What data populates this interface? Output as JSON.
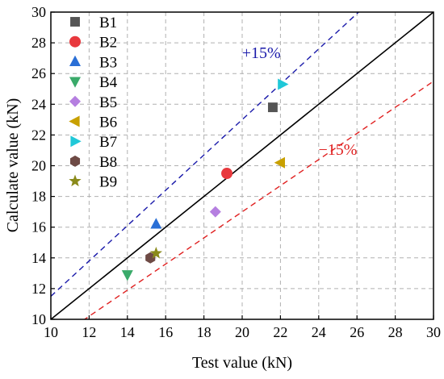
{
  "chart_data": {
    "type": "scatter",
    "xlabel": "Test value (kN)",
    "ylabel": "Calculate value (kN)",
    "xlim": [
      10,
      30
    ],
    "ylim": [
      10,
      30
    ],
    "xticks": [
      10,
      12,
      14,
      16,
      18,
      20,
      22,
      24,
      26,
      28,
      30
    ],
    "yticks": [
      10,
      12,
      14,
      16,
      18,
      20,
      22,
      24,
      26,
      28,
      30
    ],
    "grid": true,
    "legend_position": "top-left",
    "series": [
      {
        "name": "B1",
        "marker": "square",
        "color": "#555555",
        "x": 21.6,
        "y": 23.8
      },
      {
        "name": "B2",
        "marker": "circle",
        "color": "#e8383d",
        "x": 19.2,
        "y": 19.5
      },
      {
        "name": "B3",
        "marker": "triangle-up",
        "color": "#2a6fd6",
        "x": 15.5,
        "y": 16.2
      },
      {
        "name": "B4",
        "marker": "triangle-down",
        "color": "#3aaa6a",
        "x": 14.0,
        "y": 12.9
      },
      {
        "name": "B5",
        "marker": "diamond",
        "color": "#b57fe0",
        "x": 18.6,
        "y": 17.0
      },
      {
        "name": "B6",
        "marker": "triangle-left",
        "color": "#c8a000",
        "x": 22.0,
        "y": 20.2
      },
      {
        "name": "B7",
        "marker": "triangle-right",
        "color": "#20c8d8",
        "x": 22.1,
        "y": 25.3
      },
      {
        "name": "B8",
        "marker": "hexagon",
        "color": "#6e4a45",
        "x": 15.2,
        "y": 14.0
      },
      {
        "name": "B9",
        "marker": "star",
        "color": "#8a8a1a",
        "x": 15.5,
        "y": 14.3
      }
    ],
    "reference_lines": [
      {
        "label": "",
        "slope": 1.0,
        "style": "solid",
        "color": "#000000"
      },
      {
        "label": "+15%",
        "slope": 1.15,
        "style": "dashed",
        "color": "#1a1aaa"
      },
      {
        "label": "−15%",
        "slope": 0.85,
        "style": "dashed",
        "color": "#e02020"
      }
    ]
  }
}
